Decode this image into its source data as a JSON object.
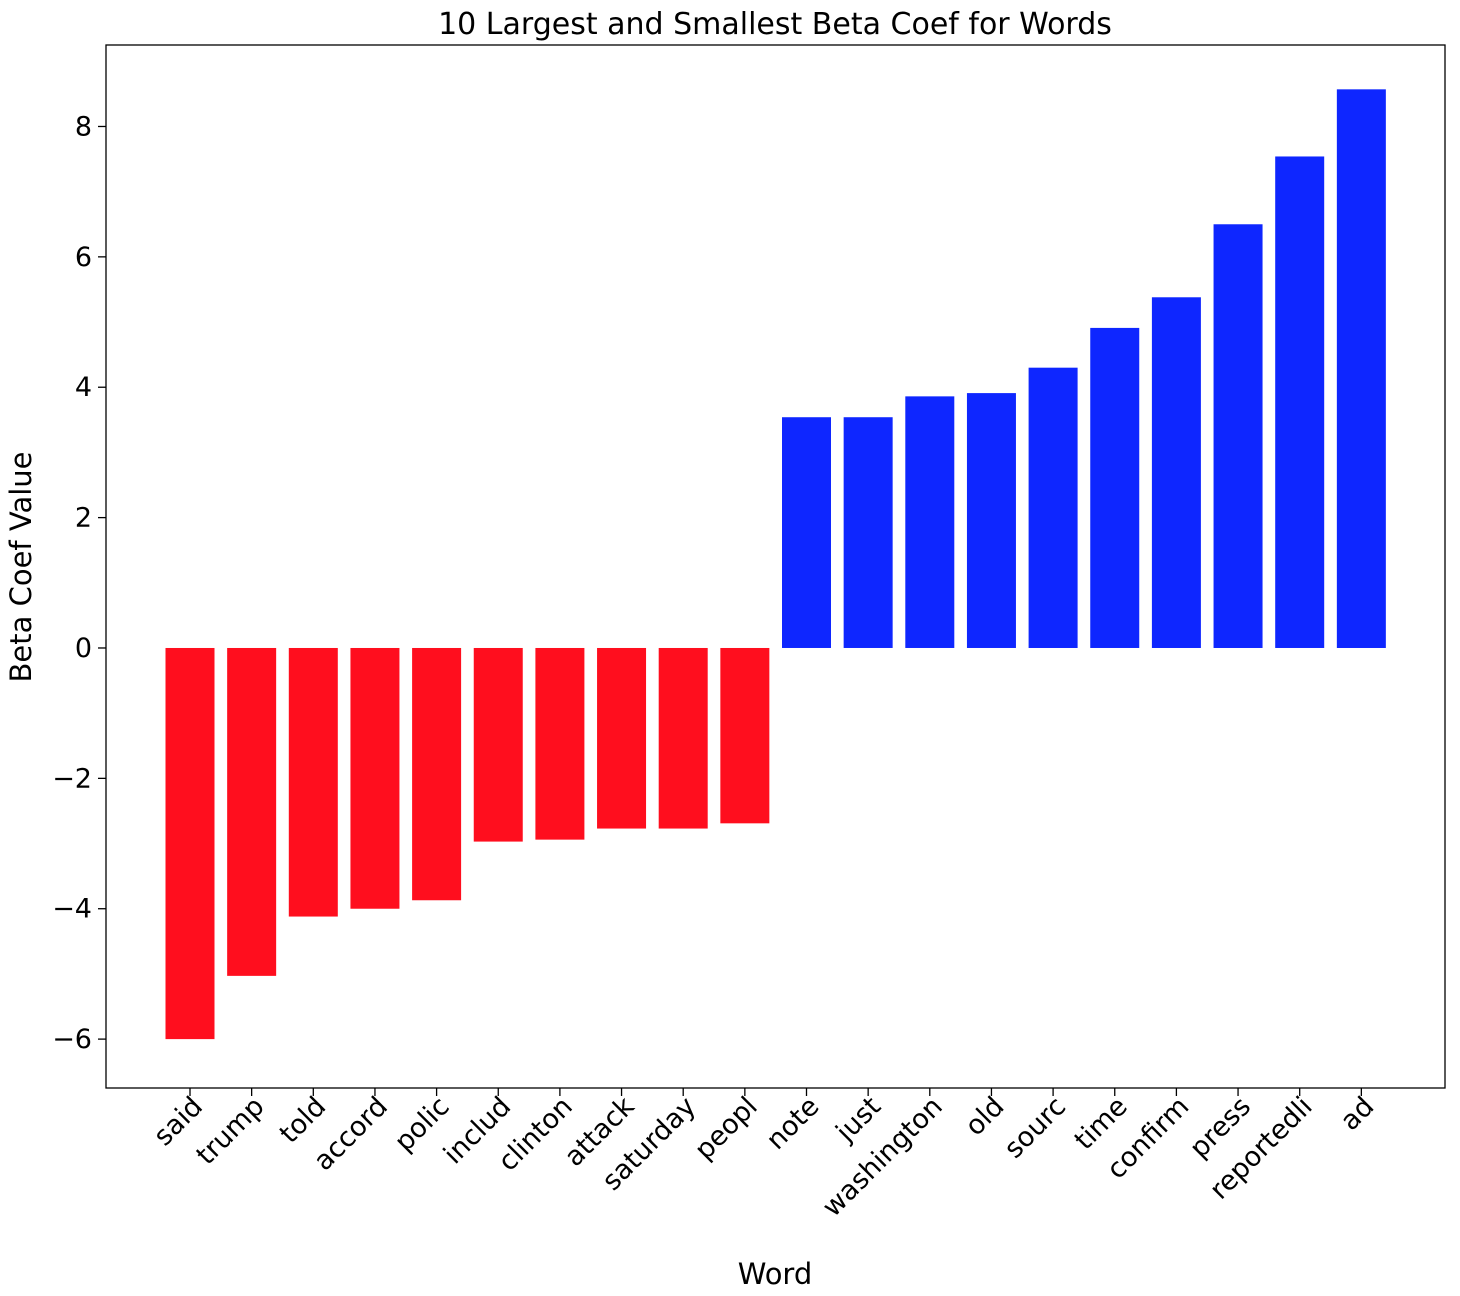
{
  "chart_data": {
    "type": "bar",
    "title": "10 Largest and Smallest Beta Coef for Words",
    "xlabel": "Word",
    "ylabel": "Beta Coef Value",
    "ylim": [
      -6.75,
      9.25
    ],
    "yticks": [
      -6,
      -4,
      -2,
      0,
      2,
      4,
      6,
      8
    ],
    "ytick_labels": [
      "−6",
      "−4",
      "−2",
      "0",
      "2",
      "4",
      "6",
      "8"
    ],
    "grid": false,
    "categories": [
      "said",
      "trump",
      "told",
      "accord",
      "polic",
      "includ",
      "clinton",
      "attack",
      "saturday",
      "peopl",
      "note",
      "just",
      "washington",
      "old",
      "sourc",
      "time",
      "confirm",
      "press",
      "reportedli",
      "ad"
    ],
    "values": [
      -6.0,
      -5.03,
      -4.12,
      -4.0,
      -3.87,
      -2.97,
      -2.94,
      -2.77,
      -2.77,
      -2.69,
      3.54,
      3.54,
      3.86,
      3.91,
      4.3,
      4.91,
      5.38,
      6.5,
      7.54,
      8.57
    ],
    "colors": {
      "negative": "#ff0e1e",
      "positive": "#0e26ff"
    }
  }
}
